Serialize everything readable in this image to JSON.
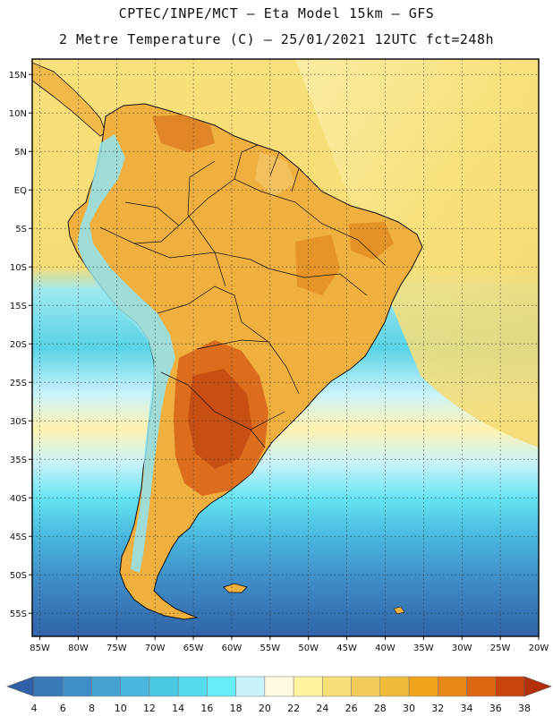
{
  "header": {
    "title_line1": "CPTEC/INPE/MCT –  Eta Model 15km – GFS",
    "title_line2": "2 Metre Temperature (C) – 25/01/2021 12UTC fct=248h"
  },
  "axes": {
    "lat_labels": [
      "15N",
      "10N",
      "5N",
      "EQ",
      "5S",
      "10S",
      "15S",
      "20S",
      "25S",
      "30S",
      "35S",
      "40S",
      "45S",
      "50S",
      "55S"
    ],
    "lat_values": [
      15,
      10,
      5,
      0,
      -5,
      -10,
      -15,
      -20,
      -25,
      -30,
      -35,
      -40,
      -45,
      -50,
      -55
    ],
    "lon_labels": [
      "85W",
      "80W",
      "75W",
      "70W",
      "65W",
      "60W",
      "55W",
      "50W",
      "45W",
      "40W",
      "35W",
      "30W",
      "25W",
      "20W"
    ],
    "lon_values": [
      -85,
      -80,
      -75,
      -70,
      -65,
      -60,
      -55,
      -50,
      -45,
      -40,
      -35,
      -30,
      -25,
      -20
    ],
    "lon_range": [
      -86,
      -20
    ],
    "lat_range": [
      -58,
      17
    ]
  },
  "colorbar": {
    "labels": [
      "4",
      "6",
      "8",
      "10",
      "12",
      "14",
      "16",
      "18",
      "20",
      "22",
      "24",
      "26",
      "28",
      "30",
      "32",
      "34",
      "36",
      "38"
    ],
    "colors": [
      "#3a78b8",
      "#3f8ec8",
      "#44a3d3",
      "#48b6dd",
      "#4cc8e4",
      "#55d9ec",
      "#66eef6",
      "#c9f3fb",
      "#fffae0",
      "#fff3a0",
      "#f9df78",
      "#f2cc5a",
      "#efbb3a",
      "#f0a41a",
      "#e88716",
      "#dc6510",
      "#c8420c"
    ],
    "low_cap_color": "#3060a8",
    "high_cap_color": "#b43008"
  }
}
